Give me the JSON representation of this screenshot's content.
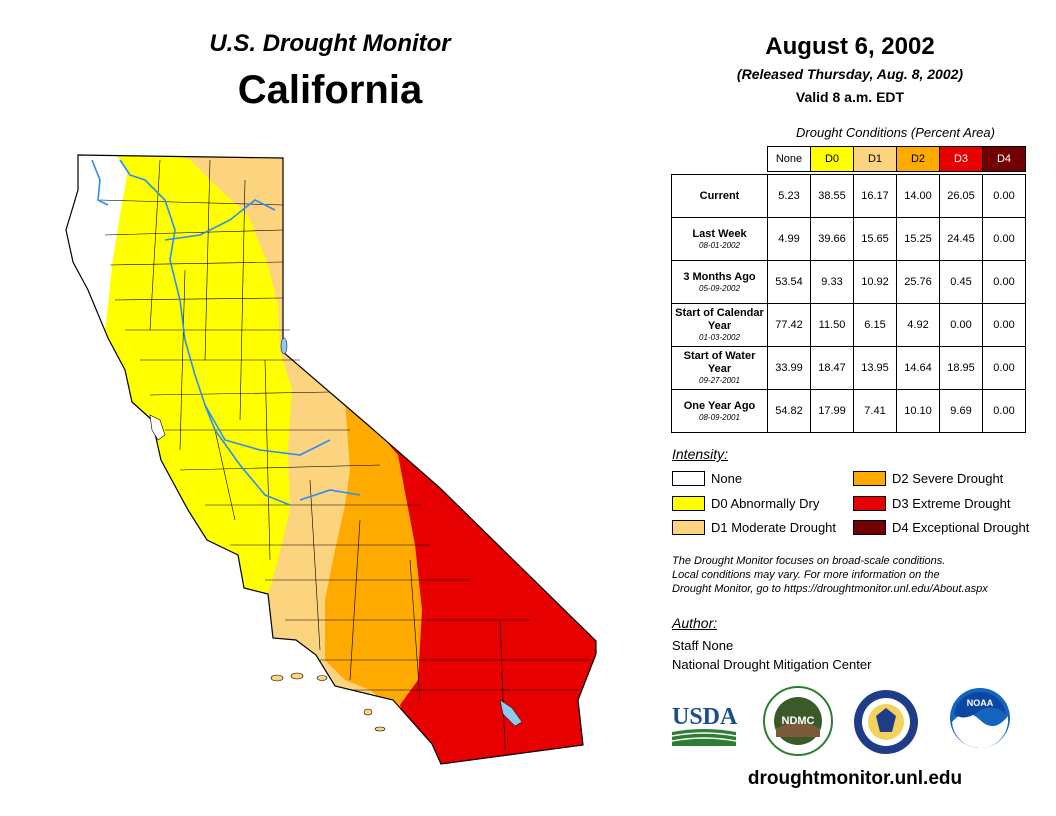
{
  "header": {
    "monitor_title": "U.S. Drought Monitor",
    "state_title": "California",
    "date": "August 6, 2002",
    "released": "(Released Thursday, Aug. 8, 2002)",
    "valid": "Valid 8 a.m. EDT"
  },
  "table": {
    "caption": "Drought Conditions (Percent Area)",
    "columns": [
      {
        "label": "None",
        "color": "#ffffff"
      },
      {
        "label": "D0",
        "color": "#ffff00"
      },
      {
        "label": "D1",
        "color": "#fcd37f"
      },
      {
        "label": "D2",
        "color": "#ffaa00"
      },
      {
        "label": "D3",
        "color": "#e60000"
      },
      {
        "label": "D4",
        "color": "#730000"
      }
    ],
    "rows": [
      {
        "label": "Current",
        "date": "",
        "values": [
          "5.23",
          "38.55",
          "16.17",
          "14.00",
          "26.05",
          "0.00"
        ]
      },
      {
        "label": "Last Week",
        "date": "08-01-2002",
        "values": [
          "4.99",
          "39.66",
          "15.65",
          "15.25",
          "24.45",
          "0.00"
        ]
      },
      {
        "label": "3 Months Ago",
        "date": "05-09-2002",
        "values": [
          "53.54",
          "9.33",
          "10.92",
          "25.76",
          "0.45",
          "0.00"
        ]
      },
      {
        "label": "Start of Calendar Year",
        "date": "01-03-2002",
        "values": [
          "77.42",
          "11.50",
          "6.15",
          "4.92",
          "0.00",
          "0.00"
        ]
      },
      {
        "label": "Start of Water Year",
        "date": "09-27-2001",
        "values": [
          "33.99",
          "18.47",
          "13.95",
          "14.64",
          "18.95",
          "0.00"
        ]
      },
      {
        "label": "One Year Ago",
        "date": "08-09-2001",
        "values": [
          "54.82",
          "17.99",
          "7.41",
          "10.10",
          "9.69",
          "0.00"
        ]
      }
    ]
  },
  "legend": {
    "title": "Intensity:",
    "items": [
      {
        "label": "None",
        "color": "#ffffff"
      },
      {
        "label": "D0 Abnormally Dry",
        "color": "#ffff00"
      },
      {
        "label": "D1 Moderate Drought",
        "color": "#fcd37f"
      },
      {
        "label": "D2 Severe Drought",
        "color": "#ffaa00"
      },
      {
        "label": "D3 Extreme Drought",
        "color": "#e60000"
      },
      {
        "label": "D4 Exceptional Drought",
        "color": "#730000"
      }
    ]
  },
  "note": {
    "line1": "The Drought Monitor focuses on broad-scale conditions.",
    "line2": "Local conditions may vary. For more information on the",
    "line3": "Drought Monitor, go to https://droughtmonitor.unl.edu/About.aspx"
  },
  "author": {
    "title": "Author:",
    "name": "Staff None",
    "org": "National Drought Mitigation Center"
  },
  "logos": {
    "usda": "USDA",
    "ndmc": "NDMC",
    "noaa": "NOAA"
  },
  "website": "droughtmonitor.unl.edu"
}
